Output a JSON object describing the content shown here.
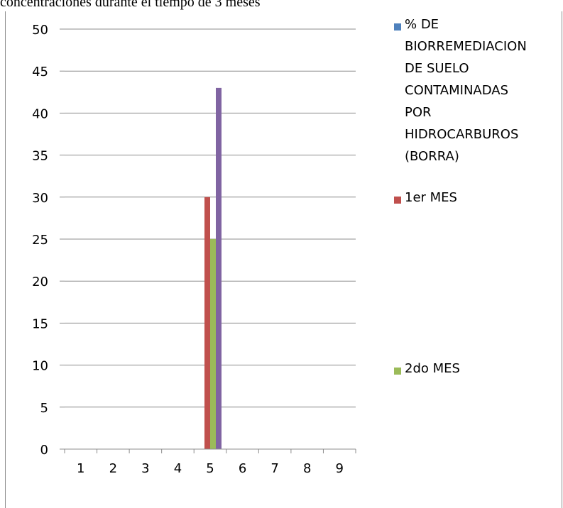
{
  "document": {
    "caption_fragment": "concentraciones durante el  tiempo de 3 meses"
  },
  "chart_data": {
    "type": "bar",
    "categories": [
      "1",
      "2",
      "3",
      "4",
      "5",
      "6",
      "7",
      "8",
      "9"
    ],
    "ylim": [
      0,
      50
    ],
    "yticks": [
      0,
      5,
      10,
      15,
      20,
      25,
      30,
      35,
      40,
      45,
      50
    ],
    "grid": true,
    "legend_position": "right",
    "series": [
      {
        "name": "% DE BIORREMEDIACION DE SUELO CONTAMINADAS POR HIDROCARBUROS (BORRA)",
        "color": "#4f81bd",
        "values": [
          0,
          0,
          0,
          0,
          0,
          0,
          0,
          0,
          0
        ]
      },
      {
        "name": "1er MES",
        "color": "#c0504d",
        "values": [
          0,
          0,
          0,
          0,
          30,
          0,
          0,
          0,
          0
        ]
      },
      {
        "name": "2do MES",
        "color": "#9bbb59",
        "values": [
          0,
          0,
          0,
          0,
          25,
          0,
          0,
          0,
          0
        ]
      },
      {
        "name": "",
        "color": "#8064a2",
        "values": [
          0,
          0,
          0,
          0,
          43,
          0,
          0,
          0,
          0
        ]
      }
    ],
    "legend": {
      "entries": [
        {
          "label": "% DE\nBIORREMEDIACION\nDE SUELO\nCONTAMINADAS\nPOR\nHIDROCARBUROS\n(BORRA)",
          "color": "#4f81bd"
        },
        {
          "label": "1er MES",
          "color": "#c0504d"
        },
        {
          "label": "2do MES",
          "color": "#9bbb59"
        }
      ]
    }
  }
}
